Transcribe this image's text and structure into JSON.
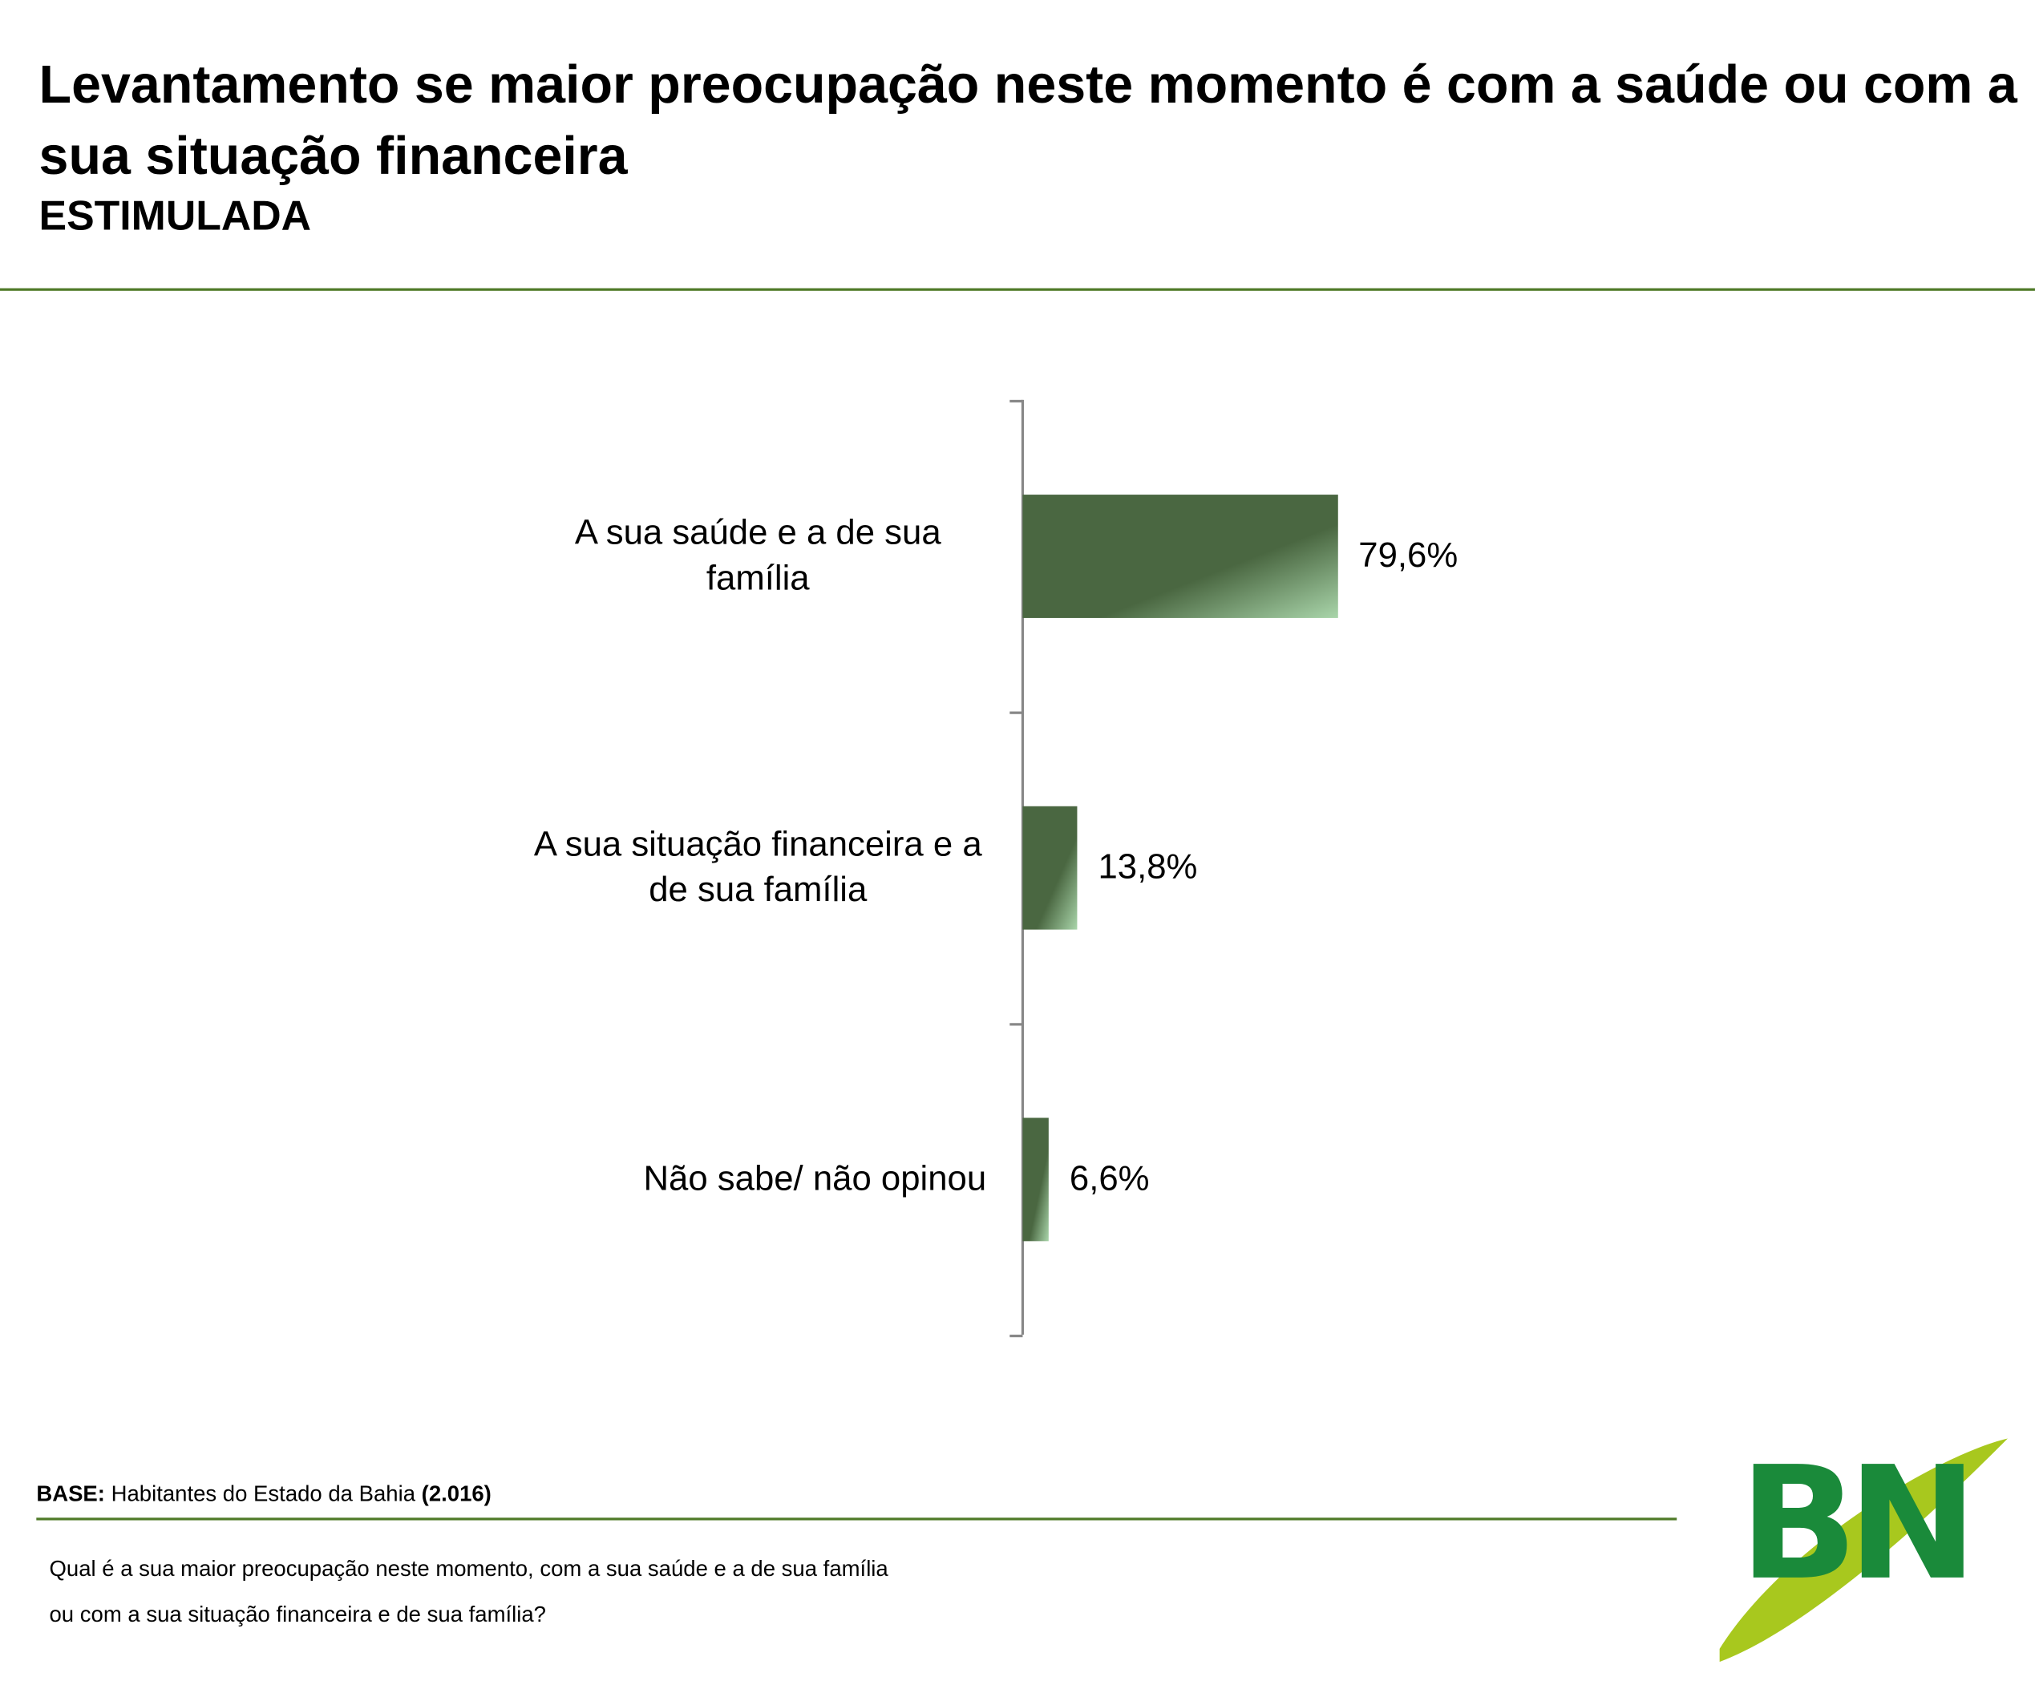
{
  "chart_data": {
    "type": "bar",
    "orientation": "horizontal",
    "title": "Levantamento se maior preocupação neste momento é com a saúde ou com a sua situação financeira",
    "subtitle": "ESTIMULADA",
    "categories": [
      "A sua saúde e a de sua família",
      "A sua situação financeira e a de sua família",
      "Não sabe/ não opinou"
    ],
    "values": [
      79.6,
      13.8,
      6.6
    ],
    "value_labels": [
      "79,6%",
      "13,8%",
      "6,6%"
    ],
    "color": "#4a6741"
  },
  "footer": {
    "base_label": "BASE:",
    "base_text": "Habitantes do Estado da Bahia",
    "base_count": "(2.016)",
    "question_line_1": "Qual é a sua maior preocupação neste momento, com a sua saúde e a de sua família",
    "question_line_2": "ou com a sua situação financeira e de sua família?",
    "logo": "BN"
  }
}
